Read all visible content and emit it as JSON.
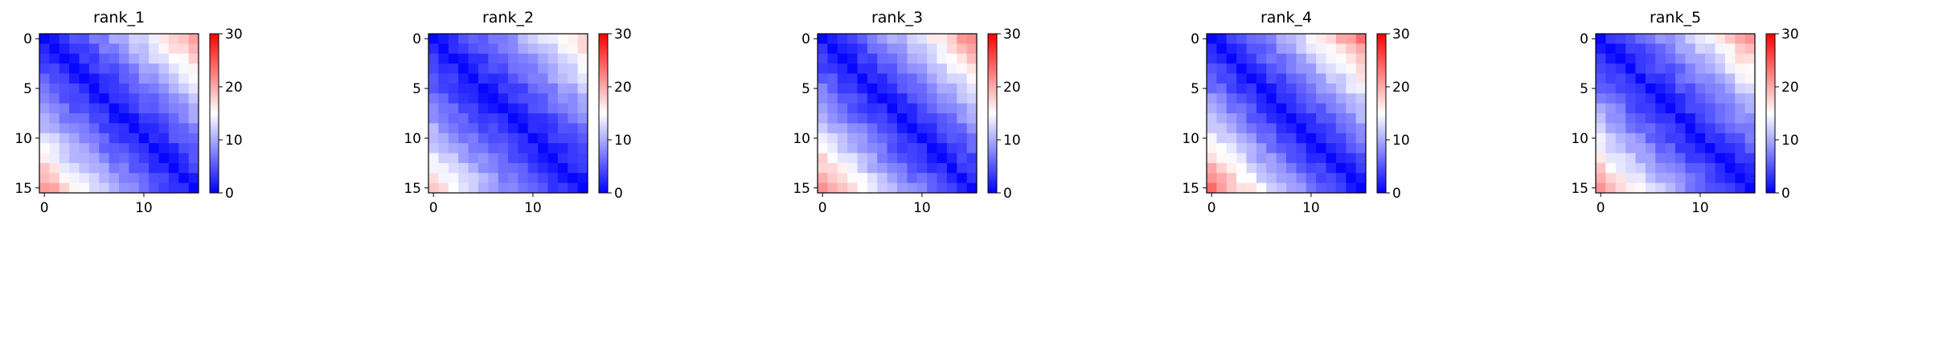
{
  "chart_data": [
    {
      "type": "heatmap",
      "title": "rank_1",
      "n": 16,
      "x_ticks": [
        0,
        10
      ],
      "y_ticks": [
        0,
        5,
        10,
        15
      ],
      "colorbar": {
        "min": 0,
        "max": 30,
        "ticks": [
          0,
          10,
          20,
          30
        ],
        "colormap": "bwr"
      },
      "edge_row_profile": [
        0,
        1,
        2,
        3,
        4,
        5,
        6,
        7,
        8,
        9,
        10,
        12,
        13,
        15,
        17,
        19
      ],
      "peak": 20
    },
    {
      "type": "heatmap",
      "title": "rank_2",
      "n": 16,
      "x_ticks": [
        0,
        10
      ],
      "y_ticks": [
        0,
        5,
        10,
        15
      ],
      "colorbar": {
        "min": 0,
        "max": 30,
        "ticks": [
          0,
          10,
          20,
          30
        ],
        "colormap": "bwr"
      },
      "peak": 17
    },
    {
      "type": "heatmap",
      "title": "rank_3",
      "n": 16,
      "x_ticks": [
        0,
        10
      ],
      "y_ticks": [
        0,
        5,
        10,
        15
      ],
      "colorbar": {
        "min": 0,
        "max": 30,
        "ticks": [
          0,
          10,
          20,
          30
        ],
        "colormap": "bwr"
      },
      "peak": 21
    },
    {
      "type": "heatmap",
      "title": "rank_4",
      "n": 16,
      "x_ticks": [
        0,
        10
      ],
      "y_ticks": [
        0,
        5,
        10,
        15
      ],
      "colorbar": {
        "min": 0,
        "max": 30,
        "ticks": [
          0,
          10,
          20,
          30
        ],
        "colormap": "bwr"
      },
      "peak": 22
    },
    {
      "type": "heatmap",
      "title": "rank_5",
      "n": 16,
      "x_ticks": [
        0,
        10
      ],
      "y_ticks": [
        0,
        5,
        10,
        15
      ],
      "colorbar": {
        "min": 0,
        "max": 30,
        "ticks": [
          0,
          10,
          20,
          30
        ],
        "colormap": "bwr"
      },
      "peak": 20
    }
  ]
}
